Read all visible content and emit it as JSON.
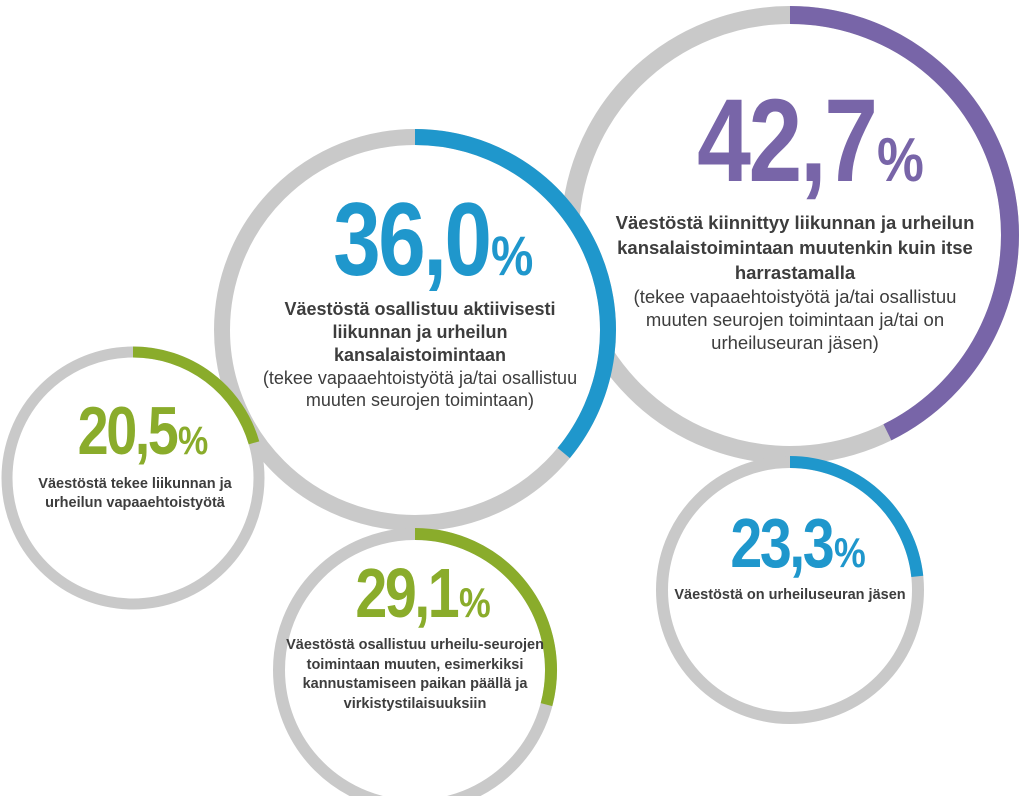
{
  "chart_data": {
    "type": "pie",
    "track_color": "#c9c9c9",
    "items": [
      {
        "id": "c1",
        "value": 42.7,
        "value_text": "42,7",
        "unit": "%",
        "color": "#7865a8",
        "description_bold": "Väestöstä kiinnittyy liikunnan ja urheilun kansalaistoimintaan muutenkin kuin itse harrastamalla",
        "description_normal": "(tekee vapaaehtoistyötä ja/tai osallistuu muuten seurojen toimintaan ja/tai on urheiluseuran jäsen)"
      },
      {
        "id": "c2",
        "value": 36.0,
        "value_text": "36,0",
        "unit": "%",
        "color": "#1f97cc",
        "description_bold": "Väestöstä osallistuu aktiivisesti liikunnan ja urheilun kansalaistoimintaan",
        "description_normal": "(tekee vapaaehtoistyötä ja/tai osallistuu muuten seurojen toimintaan)"
      },
      {
        "id": "c3",
        "value": 20.5,
        "value_text": "20,5",
        "unit": "%",
        "color": "#8aac2b",
        "description_bold": "Väestöstä tekee liikunnan ja urheilun vapaaehtoistyötä",
        "description_normal": ""
      },
      {
        "id": "c4",
        "value": 29.1,
        "value_text": "29,1",
        "unit": "%",
        "color": "#8aac2b",
        "description_bold": "Väestöstä osallistuu urheilu-seurojen toimintaan muuten, esimerkiksi kannustamiseen paikan päällä ja virkistystilaisuuksiin",
        "description_normal": ""
      },
      {
        "id": "c5",
        "value": 23.3,
        "value_text": "23,3",
        "unit": "%",
        "color": "#1f97cc",
        "description_bold": "Väestöstä on urheiluseuran jäsen",
        "description_normal": ""
      }
    ]
  }
}
